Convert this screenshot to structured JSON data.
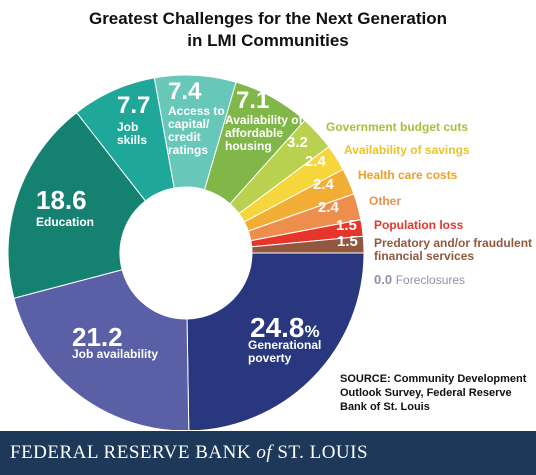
{
  "header": {
    "title_line1": "Greatest Challenges for the Next Generation",
    "title_line2": "in LMI Communities"
  },
  "chart_data": {
    "type": "pie",
    "title": "Greatest Challenges for the Next Generation in LMI Communities",
    "unit": "%",
    "categories": [
      "Generational poverty",
      "Job availability",
      "Education",
      "Job skills",
      "Access to capital/ credit ratings",
      "Availability of affordable housing",
      "Government budget cuts",
      "Availability of savings",
      "Health care costs",
      "Other",
      "Population loss",
      "Predatory and/or fraudulent financial services",
      "Foreclosures"
    ],
    "values": [
      24.8,
      21.2,
      18.6,
      7.7,
      7.4,
      7.1,
      3.2,
      2.4,
      2.4,
      2.4,
      1.5,
      1.5,
      0.0
    ],
    "slices": [
      {
        "value": 24.8,
        "value_text": "24.8%",
        "label": "Generational poverty",
        "color": "#29377f"
      },
      {
        "value": 21.2,
        "value_text": "21.2",
        "label": "Job availability",
        "color": "#5b5fa6"
      },
      {
        "value": 18.6,
        "value_text": "18.6",
        "label": "Education",
        "color": "#158271"
      },
      {
        "value": 7.7,
        "value_text": "7.7",
        "label": "Job skills",
        "color": "#1fa899"
      },
      {
        "value": 7.4,
        "value_text": "7.4",
        "label": "Access to capital/ credit ratings",
        "color": "#67c7b8"
      },
      {
        "value": 7.1,
        "value_text": "7.1",
        "label": "Availability of affordable housing",
        "color": "#80b748"
      },
      {
        "value": 3.2,
        "value_text": "3.2",
        "label": "Government budget cuts",
        "color": "#b9d14e"
      },
      {
        "value": 2.4,
        "value_text": "2.4",
        "label": "Availability of savings",
        "color": "#f6d63d"
      },
      {
        "value": 2.4,
        "value_text": "2.4",
        "label": "Health care costs",
        "color": "#f2ae34"
      },
      {
        "value": 2.4,
        "value_text": "2.4",
        "label": "Other",
        "color": "#ee8e4d"
      },
      {
        "value": 1.5,
        "value_text": "1.5",
        "label": "Population loss",
        "color": "#e6352b"
      },
      {
        "value": 1.5,
        "value_text": "1.5",
        "label": "Predatory and/or fraudulent financial services",
        "color": "#92573f"
      },
      {
        "value": 0.0,
        "value_text": "0.0",
        "label": "Foreclosures",
        "color": "#8c93a8"
      }
    ]
  },
  "source": {
    "line1": "SOURCE: Community Development",
    "line2": "Outlook Survey, Federal Reserve",
    "line3": "Bank of St. Louis"
  },
  "footer": {
    "brand_part1": "FEDERAL RESERVE BANK",
    "brand_of": "of",
    "brand_part2": "ST. LOUIS"
  }
}
